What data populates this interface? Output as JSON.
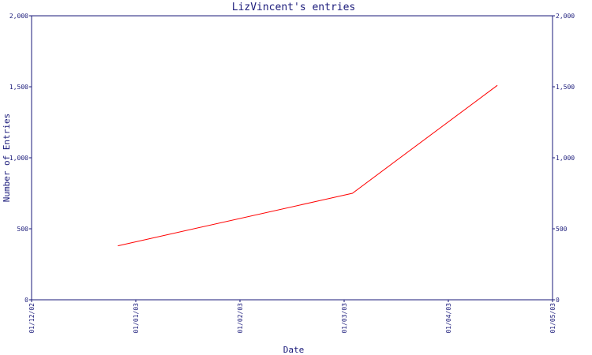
{
  "chart_data": {
    "type": "line",
    "title": "LizVincent's entries",
    "xlabel": "Date",
    "ylabel": "Number of Entries",
    "xlim": [
      "2002-12-01",
      "2003-05-01"
    ],
    "ylim": [
      0,
      2000
    ],
    "x_ticks": [
      "01/12/02",
      "01/01/03",
      "01/02/03",
      "01/03/03",
      "01/04/03",
      "01/05/03"
    ],
    "y_ticks": [
      "0",
      "500",
      "1,000",
      "1,500",
      "2,000"
    ],
    "y_tick_values": [
      0,
      500,
      1000,
      1500,
      2000
    ],
    "grid": false,
    "series": [
      {
        "x": [
          "2002-12-26",
          "2003-03-04",
          "2003-04-15"
        ],
        "values": [
          380,
          750,
          1510
        ]
      }
    ],
    "colors": {
      "line": "#ff0000",
      "axis": "#1a1a7a"
    }
  }
}
